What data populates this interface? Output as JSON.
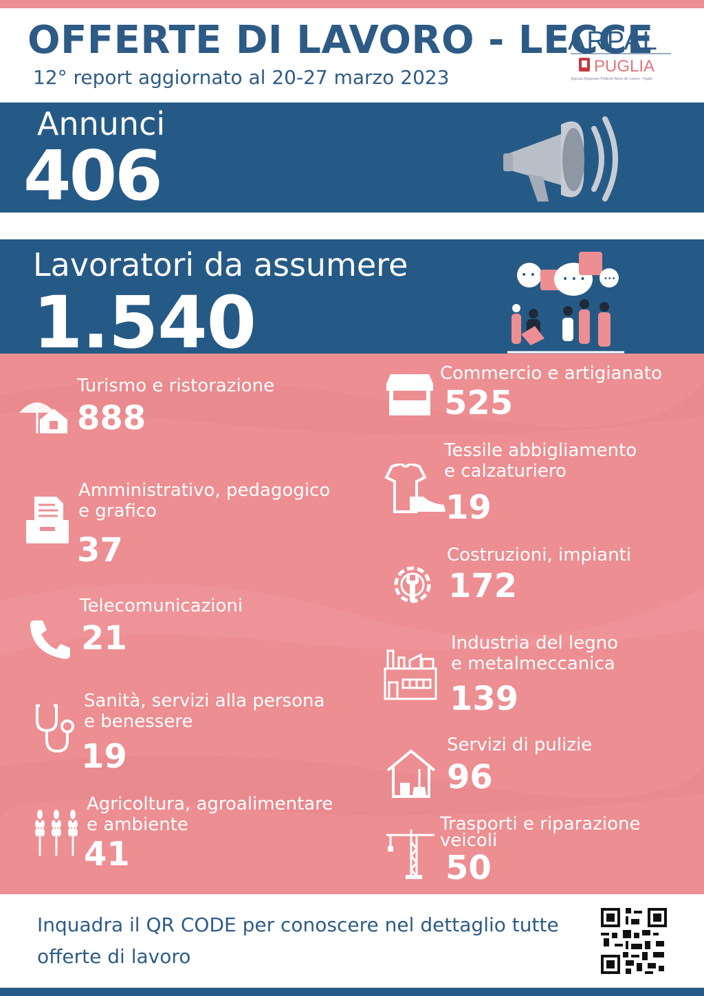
{
  "header": {
    "title": "OFFERTE DI LAVORO - LECCE",
    "subtitle": "12° report aggiornato al 20-27 marzo 2023",
    "logo_text": "ARPAL",
    "logo_sub": "PUGLIA",
    "logo_caption": "Agenzia Regionale Politiche Attive del Lavoro - Puglia"
  },
  "annunci": {
    "label": "Annunci",
    "value": "406",
    "icon": "megaphone-icon"
  },
  "lavoratori": {
    "label": "Lavoratori da assumere",
    "value": "1.540",
    "icon": "people-chat-icon"
  },
  "sectors": {
    "turismo": {
      "label": "Turismo e ristorazione",
      "value": "888",
      "icon": "beach-house-icon"
    },
    "amministrativo": {
      "label": "Amministrativo, pedagogico\ne grafico",
      "value": "37",
      "icon": "documents-tray-icon"
    },
    "telecomunicazioni": {
      "label": "Telecomunicazioni",
      "value": "21",
      "icon": "phone-icon"
    },
    "sanita": {
      "label": "Sanità, servizi alla persona\ne benessere",
      "value": "19",
      "icon": "stethoscope-icon"
    },
    "agricoltura": {
      "label": "Agricoltura,  agroalimentare\ne ambiente",
      "value": "41",
      "icon": "wheat-icon"
    },
    "commercio": {
      "label": "Commercio e artigianato",
      "value": "525",
      "icon": "market-stall-icon"
    },
    "tessile": {
      "label": "Tessile abbigliamento\ne calzaturiero",
      "value": "19",
      "icon": "shirt-shoe-icon"
    },
    "costruzioni": {
      "label": "Costruzioni, impianti",
      "value": "172",
      "icon": "gear-wrench-icon"
    },
    "industria": {
      "label": "Industria del legno\ne metalmeccanica",
      "value": "139",
      "icon": "factory-icon"
    },
    "pulizie": {
      "label": "Servizi di pulizie",
      "value": "96",
      "icon": "cleaning-house-icon"
    },
    "trasporti": {
      "label": "Trasporti e riparazione\nveicoli",
      "value": "50",
      "icon": "crane-icon"
    }
  },
  "footer": {
    "text": "Inquadra il QR CODE per conoscere nel dettaglio tutte\nofferte di lavoro",
    "qr_icon": "qr-code-icon"
  },
  "colors": {
    "blue": "#265a86",
    "pink": "#ec8e92",
    "title_blue": "#2d5b86"
  }
}
